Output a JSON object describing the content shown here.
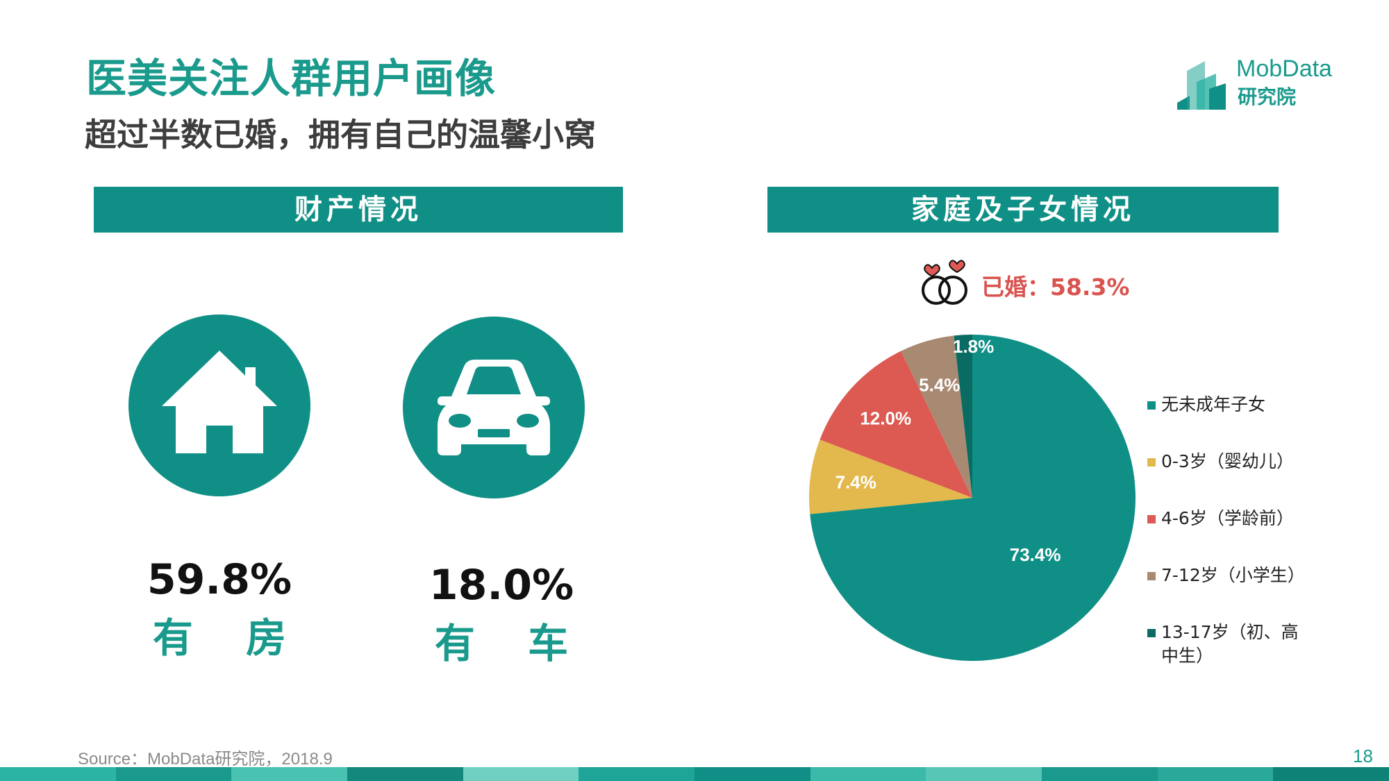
{
  "header": {
    "title": "医美关注人群用户画像",
    "subtitle": "超过半数已婚，拥有自己的温馨小窝"
  },
  "logo": {
    "brand": "MobData",
    "sub": "研究院"
  },
  "property": {
    "banner": "财产情况",
    "house": {
      "value": "59.8%",
      "label": "有 房",
      "icon": "house-icon"
    },
    "car": {
      "value": "18.0%",
      "label": "有 车",
      "icon": "car-icon"
    }
  },
  "family": {
    "banner": "家庭及子女情况",
    "married_label": "已婚：58.3%",
    "married_icon": "wedding-rings-icon"
  },
  "chart_data": {
    "type": "pie",
    "series": [
      {
        "name": "无未成年子女",
        "value": 73.4,
        "label": "73.4%",
        "color": "#0f8f86"
      },
      {
        "name": "0-3岁（婴幼儿）",
        "value": 7.4,
        "label": "7.4%",
        "color": "#e3b84c"
      },
      {
        "name": "4-6岁（学龄前）",
        "value": 12.0,
        "label": "12.0%",
        "color": "#dc5a51"
      },
      {
        "name": "7-12岁（小学生）",
        "value": 5.4,
        "label": "5.4%",
        "color": "#a88a73"
      },
      {
        "name": "13-17岁（初、高中生）",
        "value": 1.8,
        "label": "1.8%",
        "color": "#0a6b62"
      }
    ],
    "legend_position": "right"
  },
  "footer": {
    "source": "Source：MobData研究院，2018.9",
    "page": "18",
    "colors": [
      "#2bb3a3",
      "#1a9a8c",
      "#49c2b2",
      "#14887c",
      "#6fd0c2",
      "#1fa597",
      "#0f8f86",
      "#3bb9a9",
      "#58c6b7",
      "#1a9a8c",
      "#2aa99a",
      "#0e8277"
    ]
  }
}
